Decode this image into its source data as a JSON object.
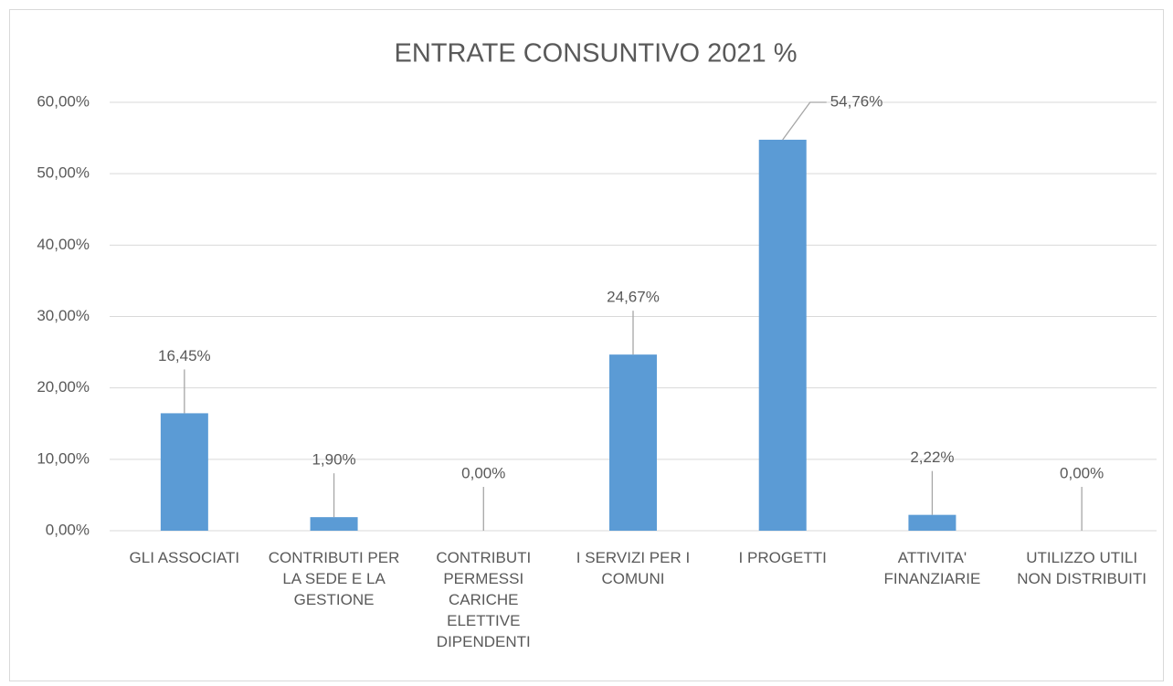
{
  "chart_data": {
    "type": "bar",
    "title": "ENTRATE CONSUNTIVO 2021 %",
    "categories": [
      "GLI ASSOCIATI",
      "CONTRIBUTI PER LA SEDE E LA GESTIONE",
      "CONTRIBUTI PERMESSI CARICHE ELETTIVE DIPENDENTI",
      "I SERVIZI PER I COMUNI",
      "I PROGETTI",
      "ATTIVITA' FINANZIARIE",
      "UTILIZZO UTILI NON DISTRIBUITI"
    ],
    "values": [
      16.45,
      1.9,
      0,
      24.67,
      54.76,
      2.22,
      0
    ],
    "value_labels": [
      "16,45%",
      "1,90%",
      "0,00%",
      "24,67%",
      "54,76%",
      "2,22%",
      "0,00%"
    ],
    "color": "#5b9bd5",
    "ylim": [
      0,
      60
    ],
    "yticks": [
      {
        "value": 0,
        "label": "0,00%"
      },
      {
        "value": 10,
        "label": "10,00%"
      },
      {
        "value": 20,
        "label": "20,00%"
      },
      {
        "value": 30,
        "label": "30,00%"
      },
      {
        "value": 40,
        "label": "40,00%"
      },
      {
        "value": 50,
        "label": "50,00%"
      },
      {
        "value": 60,
        "label": "60,00%"
      }
    ],
    "grid": true
  }
}
